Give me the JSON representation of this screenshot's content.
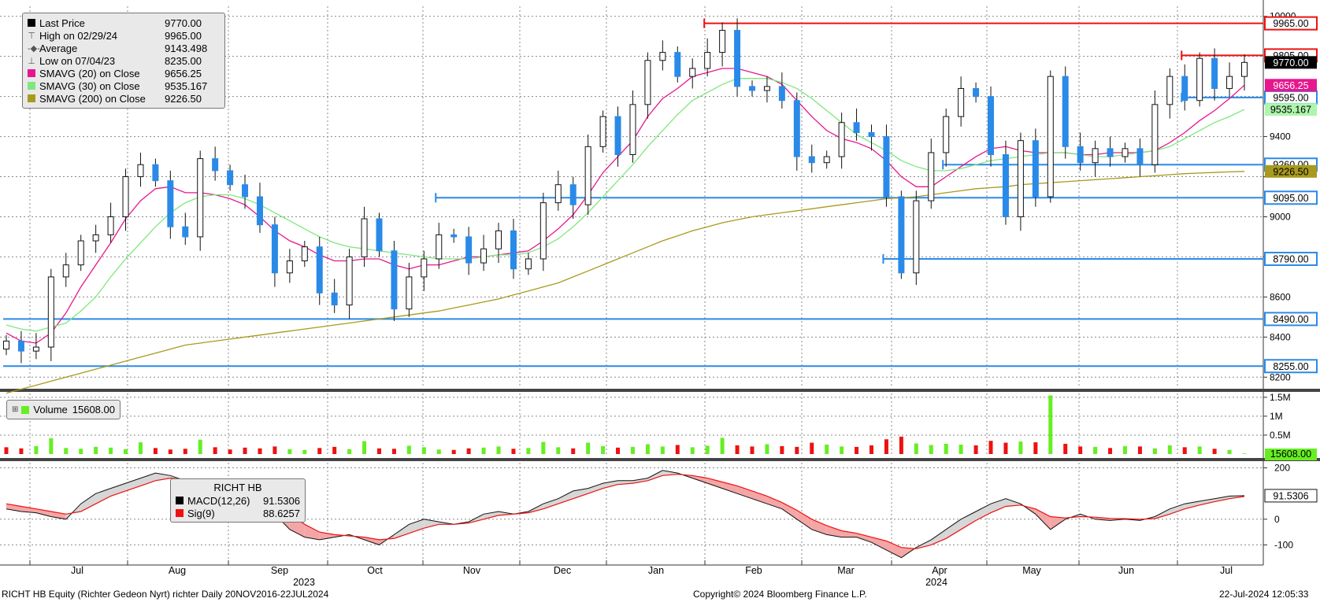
{
  "footer": {
    "left": "RICHT HB Equity (Richter Gedeon Nyrt) richter  Daily 20NOV2016-22JUL2024",
    "center": "Copyright© 2024 Bloomberg Finance L.P.",
    "right": "22-Jul-2024 12:05:33"
  },
  "legend_price": {
    "rows": [
      {
        "label": "Last Price",
        "value": "9770.00",
        "color": "#000000",
        "glyph": "box"
      },
      {
        "label": "High on 02/29/24",
        "value": "9965.00",
        "color": "#555555",
        "glyph": "⊤"
      },
      {
        "label": "Average",
        "value": "9143.498",
        "color": "#555555",
        "glyph": "-◆-"
      },
      {
        "label": "Low on 07/04/23",
        "value": "8235.00",
        "color": "#555555",
        "glyph": "⊥"
      },
      {
        "label": "SMAVG (20)  on Close",
        "value": "9656.25",
        "color": "#e6178d",
        "glyph": "box"
      },
      {
        "label": "SMAVG (30)  on Close",
        "value": "9535.167",
        "color": "#7ee87e",
        "glyph": "box"
      },
      {
        "label": "SMAVG (200)  on Close",
        "value": "9226.50",
        "color": "#a89a1e",
        "glyph": "box"
      }
    ]
  },
  "legend_volume": {
    "label": "Volume",
    "value": "15608.00",
    "color": "#66ee22"
  },
  "legend_macd": {
    "title": "RICHT HB",
    "rows": [
      {
        "label": "MACD(12,26)",
        "value": "91.5306",
        "color": "#000000"
      },
      {
        "label": "Sig(9)",
        "value": "88.6257",
        "color": "#ee1111"
      }
    ]
  },
  "chart_data": {
    "type": "candlestick",
    "title": "",
    "x_labels": [
      "Jul",
      "Aug",
      "Sep",
      "Oct",
      "Nov",
      "Dec",
      "Jan",
      "Feb",
      "Mar",
      "Apr",
      "May",
      "Jun",
      "Jul"
    ],
    "year_labels": [
      "2023",
      "2024"
    ],
    "price_axis": {
      "ylim": [
        8150,
        10050
      ],
      "ticks": [
        8200,
        8400,
        8600,
        8800,
        9000,
        9200,
        9400,
        10000
      ],
      "tick_labels": [
        "8200",
        "8400",
        "8600",
        "",
        "9000",
        "",
        "9400",
        "10000"
      ]
    },
    "price_points": [
      {
        "x": 0,
        "y": 8380
      },
      {
        "x": 1,
        "y": 8330
      },
      {
        "x": 2,
        "y": 8350
      },
      {
        "x": 3,
        "y": 8700
      },
      {
        "x": 4,
        "y": 8760
      },
      {
        "x": 5,
        "y": 8880
      },
      {
        "x": 6,
        "y": 8910
      },
      {
        "x": 7,
        "y": 9000
      },
      {
        "x": 8,
        "y": 9200
      },
      {
        "x": 9,
        "y": 9260
      },
      {
        "x": 10,
        "y": 9180
      },
      {
        "x": 11,
        "y": 8950
      },
      {
        "x": 12,
        "y": 8900
      },
      {
        "x": 13,
        "y": 9290
      },
      {
        "x": 14,
        "y": 9230
      },
      {
        "x": 15,
        "y": 9160
      },
      {
        "x": 16,
        "y": 9100
      },
      {
        "x": 17,
        "y": 8960
      },
      {
        "x": 18,
        "y": 8720
      },
      {
        "x": 19,
        "y": 8780
      },
      {
        "x": 20,
        "y": 8850
      },
      {
        "x": 21,
        "y": 8620
      },
      {
        "x": 22,
        "y": 8560
      },
      {
        "x": 23,
        "y": 8800
      },
      {
        "x": 24,
        "y": 8990
      },
      {
        "x": 25,
        "y": 8830
      },
      {
        "x": 26,
        "y": 8540
      },
      {
        "x": 27,
        "y": 8700
      },
      {
        "x": 28,
        "y": 8790
      },
      {
        "x": 29,
        "y": 8910
      },
      {
        "x": 30,
        "y": 8900
      },
      {
        "x": 31,
        "y": 8770
      },
      {
        "x": 32,
        "y": 8840
      },
      {
        "x": 33,
        "y": 8930
      },
      {
        "x": 34,
        "y": 8740
      },
      {
        "x": 35,
        "y": 8790
      },
      {
        "x": 36,
        "y": 9070
      },
      {
        "x": 37,
        "y": 9160
      },
      {
        "x": 38,
        "y": 9060
      },
      {
        "x": 39,
        "y": 9350
      },
      {
        "x": 40,
        "y": 9500
      },
      {
        "x": 41,
        "y": 9310
      },
      {
        "x": 42,
        "y": 9560
      },
      {
        "x": 43,
        "y": 9780
      },
      {
        "x": 44,
        "y": 9820
      },
      {
        "x": 45,
        "y": 9700
      },
      {
        "x": 46,
        "y": 9740
      },
      {
        "x": 47,
        "y": 9820
      },
      {
        "x": 48,
        "y": 9930
      },
      {
        "x": 49,
        "y": 9650
      },
      {
        "x": 50,
        "y": 9630
      },
      {
        "x": 51,
        "y": 9650
      },
      {
        "x": 52,
        "y": 9580
      },
      {
        "x": 53,
        "y": 9300
      },
      {
        "x": 54,
        "y": 9270
      },
      {
        "x": 55,
        "y": 9300
      },
      {
        "x": 56,
        "y": 9470
      },
      {
        "x": 57,
        "y": 9420
      },
      {
        "x": 58,
        "y": 9400
      },
      {
        "x": 59,
        "y": 9100
      },
      {
        "x": 60,
        "y": 8720
      },
      {
        "x": 61,
        "y": 9080
      },
      {
        "x": 62,
        "y": 9320
      },
      {
        "x": 63,
        "y": 9500
      },
      {
        "x": 64,
        "y": 9640
      },
      {
        "x": 65,
        "y": 9600
      },
      {
        "x": 66,
        "y": 9310
      },
      {
        "x": 67,
        "y": 9000
      },
      {
        "x": 68,
        "y": 9380
      },
      {
        "x": 69,
        "y": 9100
      },
      {
        "x": 70,
        "y": 9700
      },
      {
        "x": 71,
        "y": 9350
      },
      {
        "x": 72,
        "y": 9270
      },
      {
        "x": 73,
        "y": 9340
      },
      {
        "x": 74,
        "y": 9300
      },
      {
        "x": 75,
        "y": 9340
      },
      {
        "x": 76,
        "y": 9260
      },
      {
        "x": 77,
        "y": 9560
      },
      {
        "x": 78,
        "y": 9700
      },
      {
        "x": 79,
        "y": 9580
      },
      {
        "x": 80,
        "y": 9790
      },
      {
        "x": 81,
        "y": 9640
      },
      {
        "x": 82,
        "y": 9700
      },
      {
        "x": 83,
        "y": 9770
      }
    ],
    "sma_series": [
      {
        "name": "SMAVG (20)",
        "color": "#e6178d",
        "values": [
          8420,
          8380,
          8370,
          8420,
          8520,
          8650,
          8760,
          8870,
          8990,
          9080,
          9140,
          9150,
          9120,
          9120,
          9110,
          9090,
          9060,
          9000,
          8930,
          8880,
          8850,
          8810,
          8780,
          8780,
          8790,
          8790,
          8760,
          8740,
          8760,
          8760,
          8780,
          8800,
          8800,
          8810,
          8820,
          8830,
          8880,
          8940,
          9010,
          9110,
          9220,
          9300,
          9380,
          9500,
          9590,
          9640,
          9700,
          9720,
          9740,
          9740,
          9720,
          9700,
          9660,
          9580,
          9500,
          9430,
          9390,
          9370,
          9340,
          9280,
          9200,
          9150,
          9150,
          9200,
          9250,
          9300,
          9340,
          9350,
          9330,
          9320,
          9320,
          9320,
          9310,
          9310,
          9320,
          9320,
          9320,
          9330,
          9370,
          9420,
          9480,
          9530,
          9590,
          9656.25
        ]
      },
      {
        "name": "SMAVG (30)",
        "color": "#7ee87e",
        "values": [
          8460,
          8440,
          8430,
          8450,
          8470,
          8530,
          8600,
          8700,
          8790,
          8870,
          8950,
          9020,
          9070,
          9100,
          9110,
          9110,
          9090,
          9060,
          9020,
          8980,
          8940,
          8900,
          8870,
          8850,
          8840,
          8830,
          8820,
          8810,
          8800,
          8790,
          8790,
          8790,
          8800,
          8810,
          8810,
          8820,
          8850,
          8890,
          8950,
          9020,
          9100,
          9180,
          9260,
          9350,
          9430,
          9510,
          9580,
          9620,
          9660,
          9690,
          9690,
          9690,
          9670,
          9640,
          9590,
          9530,
          9470,
          9410,
          9370,
          9330,
          9280,
          9250,
          9230,
          9230,
          9240,
          9260,
          9280,
          9290,
          9300,
          9310,
          9320,
          9320,
          9310,
          9300,
          9300,
          9310,
          9320,
          9330,
          9350,
          9390,
          9430,
          9470,
          9500,
          9535.167
        ]
      },
      {
        "name": "SMAVG (200)",
        "color": "#a89a1e",
        "values": [
          8120,
          8140,
          8160,
          8180,
          8200,
          8220,
          8240,
          8260,
          8280,
          8300,
          8320,
          8340,
          8360,
          8370,
          8380,
          8390,
          8400,
          8410,
          8420,
          8430,
          8440,
          8450,
          8460,
          8470,
          8480,
          8490,
          8500,
          8510,
          8520,
          8530,
          8545,
          8560,
          8575,
          8590,
          8610,
          8630,
          8650,
          8670,
          8700,
          8730,
          8760,
          8790,
          8820,
          8850,
          8880,
          8905,
          8930,
          8950,
          8970,
          8985,
          9000,
          9010,
          9020,
          9030,
          9040,
          9050,
          9060,
          9070,
          9080,
          9090,
          9095,
          9100,
          9110,
          9120,
          9130,
          9140,
          9145,
          9150,
          9160,
          9165,
          9170,
          9175,
          9180,
          9185,
          9190,
          9195,
          9200,
          9205,
          9210,
          9215,
          9218,
          9221,
          9224,
          9226.5
        ]
      }
    ],
    "reference_lines": [
      {
        "label": "9965.00",
        "value": 9965,
        "color": "#ee1111",
        "x_start": 47
      },
      {
        "label": "9805.00",
        "value": 9805,
        "color": "#ee1111",
        "x_start": 79
      },
      {
        "label": "9595.00",
        "value": 9595,
        "color": "#2a8ae8",
        "x_start": 79
      },
      {
        "label": "9260.00",
        "value": 9260,
        "color": "#2a8ae8",
        "x_start": 63
      },
      {
        "label": "9095.00",
        "value": 9095,
        "color": "#2a8ae8",
        "x_start": 29
      },
      {
        "label": "8790.00",
        "value": 8790,
        "color": "#2a8ae8",
        "x_start": 59
      },
      {
        "label": "8490.00",
        "value": 8490,
        "color": "#2a8ae8",
        "x_start": 0
      },
      {
        "label": "8255.00",
        "value": 8255,
        "color": "#2a8ae8",
        "x_start": 0
      }
    ],
    "right_badges": [
      {
        "label": "9770.00",
        "value": 9770,
        "bg": "#000000",
        "fg": "#ffffff"
      },
      {
        "label": "9656.25",
        "value": 9656.25,
        "bg": "#e6178d",
        "fg": "#ffffff"
      },
      {
        "label": "9535.167",
        "value": 9535.167,
        "bg": "#aef5ae",
        "fg": "#000000"
      },
      {
        "label": "9226.50",
        "value": 9226.5,
        "bg": "#a89a1e",
        "fg": "#000000"
      }
    ],
    "volume": {
      "ylim": [
        0,
        1600000
      ],
      "ticks": [
        500000,
        1000000,
        1500000
      ],
      "tick_labels": [
        "0.5M",
        "1M",
        "1.5M"
      ],
      "values": [
        180000,
        150000,
        210000,
        420000,
        160000,
        140000,
        190000,
        170000,
        130000,
        310000,
        160000,
        120000,
        140000,
        380000,
        180000,
        120000,
        170000,
        150000,
        200000,
        130000,
        110000,
        160000,
        190000,
        130000,
        340000,
        150000,
        140000,
        220000,
        180000,
        120000,
        110000,
        150000,
        170000,
        200000,
        140000,
        160000,
        320000,
        180000,
        150000,
        300000,
        210000,
        170000,
        190000,
        260000,
        200000,
        240000,
        180000,
        220000,
        430000,
        230000,
        200000,
        260000,
        210000,
        190000,
        300000,
        250000,
        200000,
        190000,
        230000,
        390000,
        460000,
        280000,
        240000,
        270000,
        250000,
        230000,
        350000,
        300000,
        330000,
        310000,
        1550000,
        270000,
        200000,
        190000,
        160000,
        210000,
        200000,
        150000,
        230000,
        180000,
        200000,
        140000,
        110000,
        15608
      ],
      "last_label": "15608.00"
    },
    "macd": {
      "ylim": [
        -160,
        220
      ],
      "ticks": [
        200,
        0,
        -100
      ],
      "tick_labels": [
        "200",
        "0",
        "-100"
      ],
      "macd": [
        40,
        30,
        25,
        10,
        0,
        60,
        100,
        120,
        140,
        160,
        180,
        170,
        150,
        140,
        130,
        115,
        90,
        60,
        20,
        -40,
        -70,
        -80,
        -70,
        -60,
        -80,
        -100,
        -60,
        -20,
        0,
        -10,
        -20,
        -10,
        20,
        30,
        20,
        30,
        60,
        80,
        110,
        120,
        140,
        150,
        150,
        160,
        190,
        180,
        160,
        140,
        120,
        100,
        80,
        60,
        40,
        0,
        -40,
        -60,
        -70,
        -70,
        -90,
        -120,
        -150,
        -110,
        -80,
        -40,
        0,
        30,
        60,
        80,
        60,
        20,
        -40,
        0,
        20,
        0,
        -5,
        0,
        -5,
        10,
        40,
        60,
        70,
        80,
        90,
        91.5306
      ],
      "signal": [
        60,
        50,
        40,
        30,
        20,
        30,
        60,
        90,
        110,
        130,
        150,
        160,
        155,
        150,
        140,
        130,
        110,
        90,
        60,
        20,
        -20,
        -50,
        -60,
        -65,
        -70,
        -80,
        -75,
        -55,
        -35,
        -20,
        -20,
        -15,
        0,
        15,
        20,
        25,
        40,
        60,
        80,
        100,
        120,
        135,
        140,
        150,
        170,
        175,
        170,
        160,
        145,
        130,
        110,
        90,
        65,
        35,
        0,
        -25,
        -45,
        -55,
        -70,
        -85,
        -110,
        -115,
        -100,
        -75,
        -40,
        -5,
        25,
        50,
        55,
        40,
        10,
        5,
        10,
        8,
        3,
        2,
        0,
        2,
        20,
        40,
        55,
        68,
        80,
        88.6257
      ],
      "last_label": "91.5306"
    }
  }
}
